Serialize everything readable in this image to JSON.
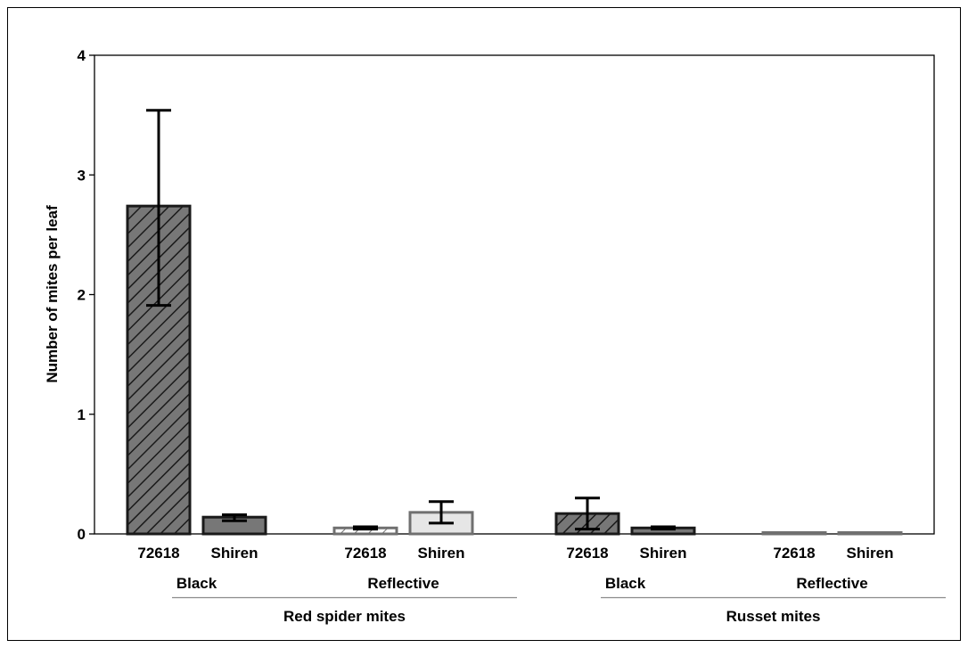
{
  "chart_data": {
    "type": "bar",
    "title": "",
    "ylabel": "Number of mites per leaf",
    "ylim": [
      0,
      4
    ],
    "yticks": [
      "0",
      "1",
      "2",
      "3",
      "4"
    ],
    "pests": [
      {
        "label": "Red spider mites",
        "groups": [
          {
            "label": "Black",
            "bars": [
              {
                "label": "72618",
                "value": 2.74,
                "err_low": 1.91,
                "err_high": 3.54,
                "style": "hatched"
              },
              {
                "label": "Shiren",
                "value": 0.14,
                "err_low": 0.11,
                "err_high": 0.16,
                "style": "dark"
              }
            ]
          },
          {
            "label": "Reflective",
            "bars": [
              {
                "label": "72618",
                "value": 0.05,
                "err_low": 0.04,
                "err_high": 0.06,
                "style": "light-hatched"
              },
              {
                "label": "Shiren",
                "value": 0.18,
                "err_low": 0.09,
                "err_high": 0.27,
                "style": "light"
              }
            ]
          }
        ]
      },
      {
        "label": "Russet mites",
        "groups": [
          {
            "label": "Black",
            "bars": [
              {
                "label": "72618",
                "value": 0.17,
                "err_low": 0.04,
                "err_high": 0.3,
                "style": "hatched"
              },
              {
                "label": "Shiren",
                "value": 0.05,
                "err_low": 0.04,
                "err_high": 0.06,
                "style": "dark"
              }
            ]
          },
          {
            "label": "Reflective",
            "bars": [
              {
                "label": "72618",
                "value": 0.01,
                "err_low": 0.01,
                "err_high": 0.01,
                "style": "light-hatched"
              },
              {
                "label": "Shiren",
                "value": 0.01,
                "err_low": 0.01,
                "err_high": 0.01,
                "style": "light"
              }
            ]
          }
        ]
      }
    ],
    "colors": {
      "dark_fill": "#777777",
      "light_fill": "#e6e6e6",
      "dark_stroke": "#1a1a1a",
      "light_stroke": "#707070",
      "hatch_line": "#1a1a1a",
      "separator": "#8c8c8c"
    }
  }
}
